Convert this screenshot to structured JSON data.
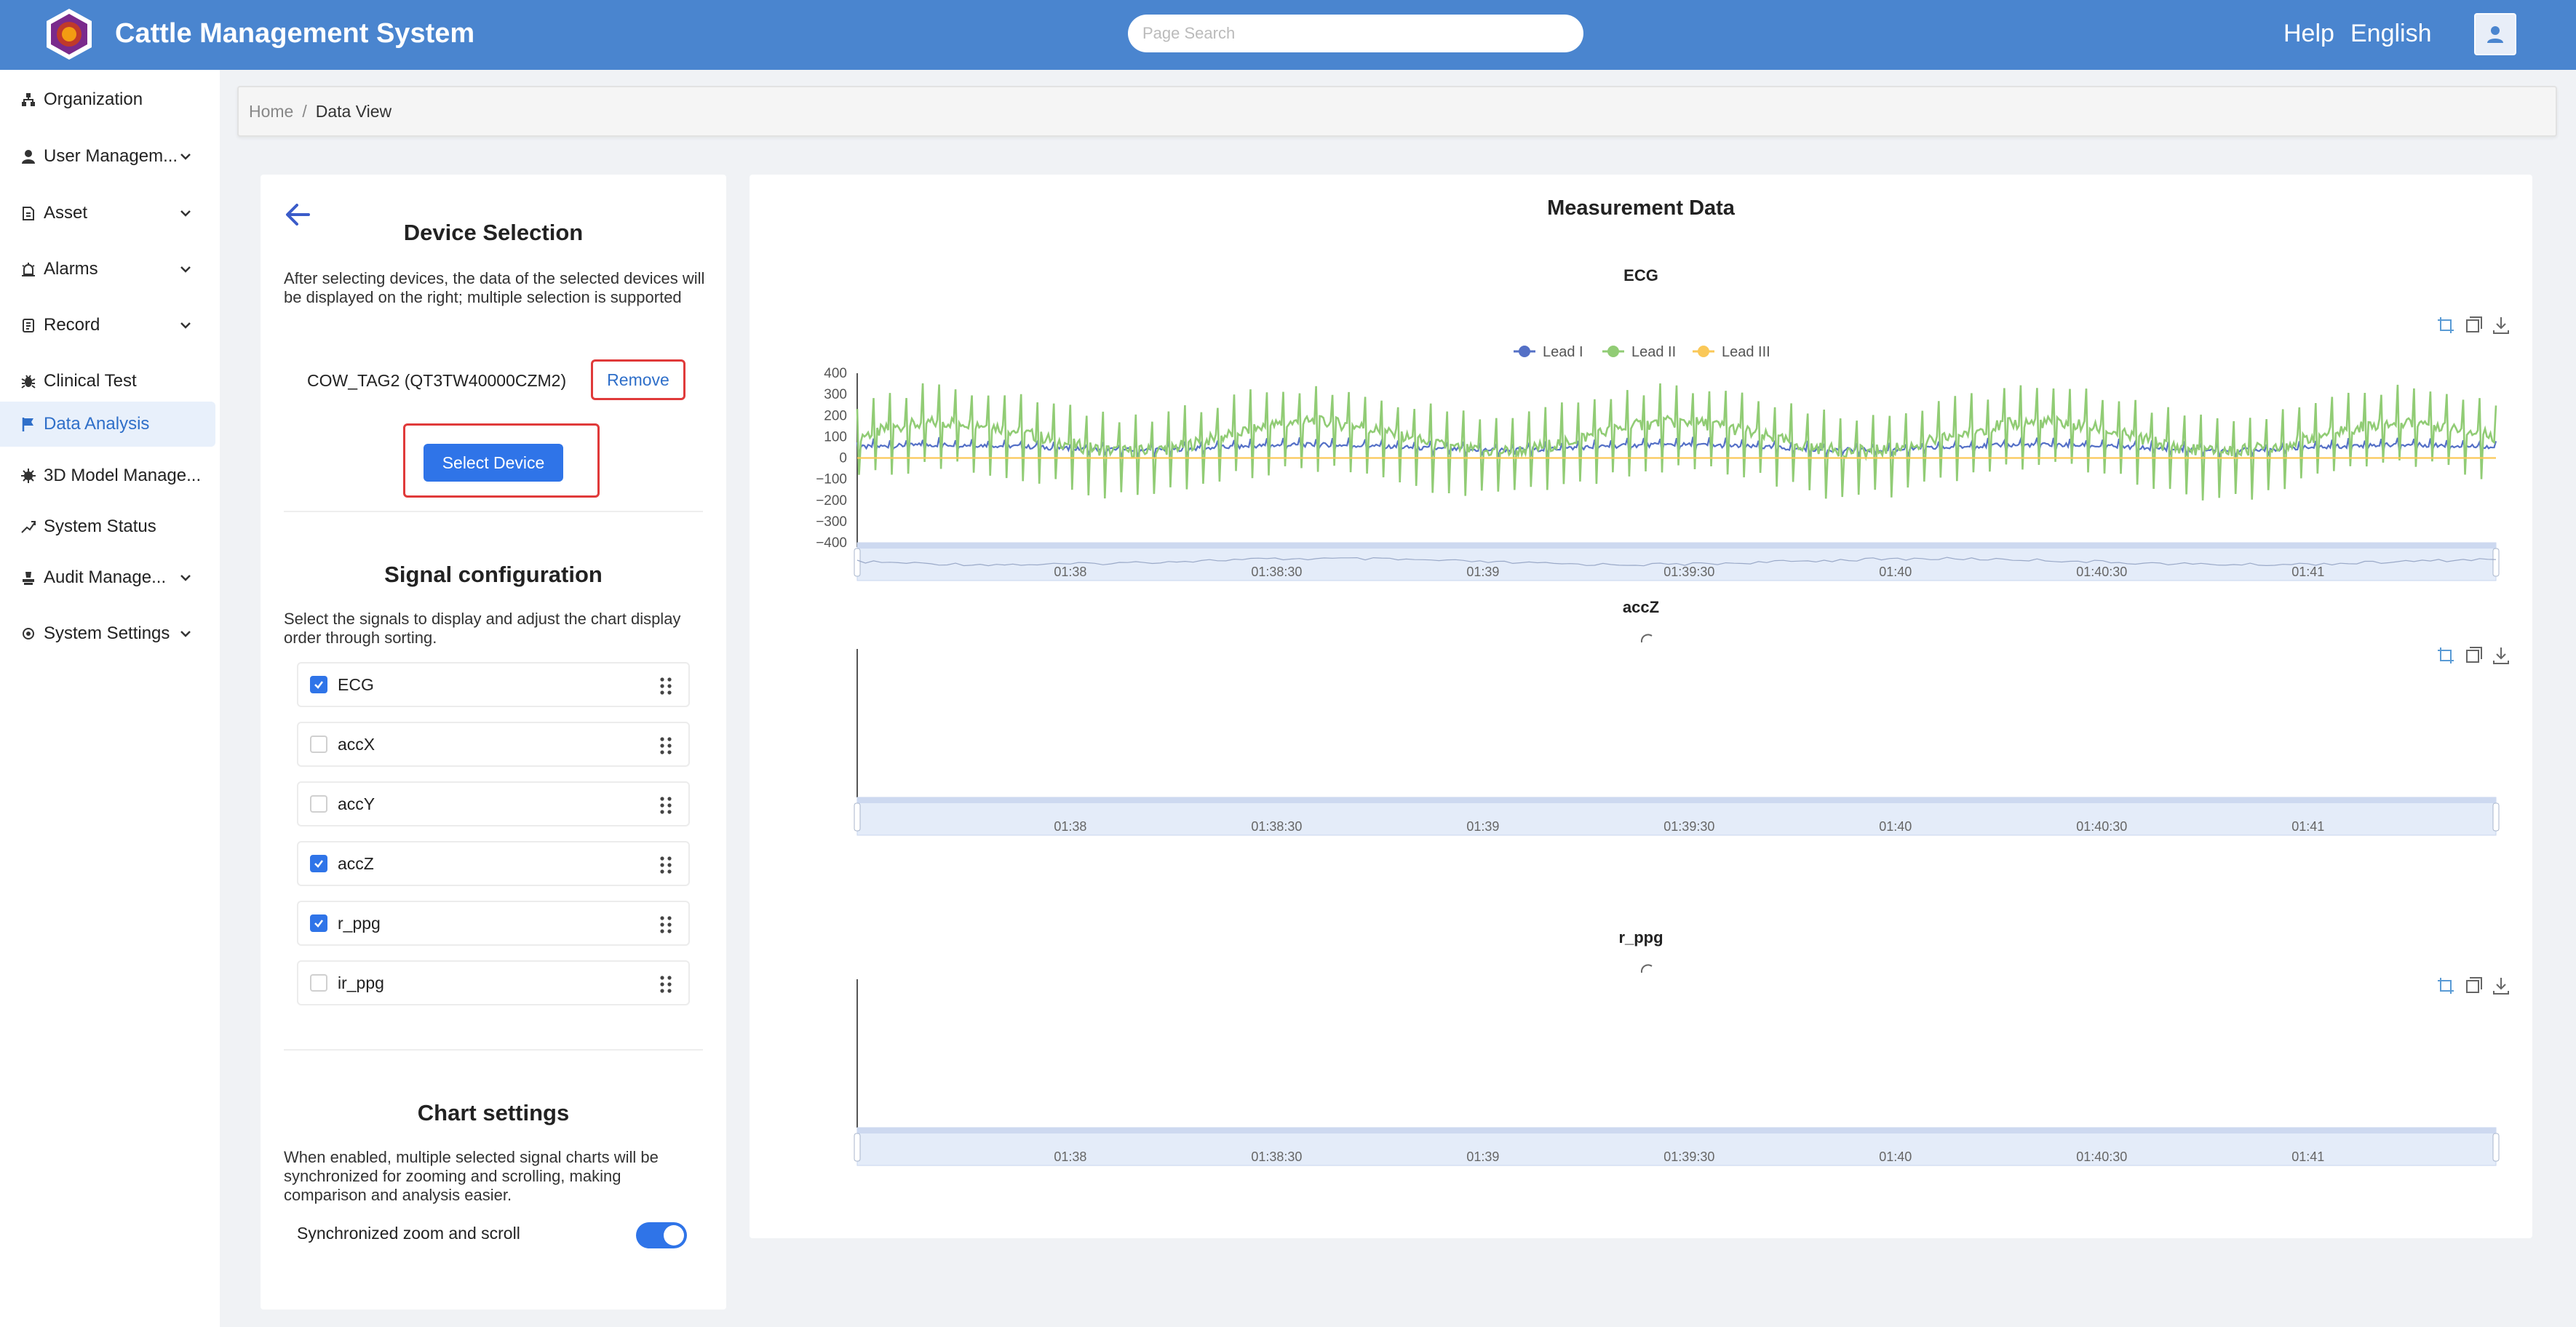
{
  "app": {
    "title": "Cattle Management System"
  },
  "header": {
    "search_placeholder": "Page Search",
    "help": "Help",
    "language": "English"
  },
  "sidebar": {
    "items": [
      {
        "label": "Organization",
        "icon": "org-icon",
        "expandable": false
      },
      {
        "label": "User Managem...",
        "icon": "user-icon",
        "expandable": true
      },
      {
        "label": "Asset",
        "icon": "asset-icon",
        "expandable": true
      },
      {
        "label": "Alarms",
        "icon": "alarm-icon",
        "expandable": true
      },
      {
        "label": "Record",
        "icon": "record-icon",
        "expandable": true
      },
      {
        "label": "Clinical Test",
        "icon": "bug-icon",
        "expandable": false
      },
      {
        "label": "Data Analysis",
        "icon": "flag-icon",
        "expandable": false,
        "active": true
      },
      {
        "label": "3D Model Manage...",
        "icon": "model-icon",
        "expandable": false
      },
      {
        "label": "System Status",
        "icon": "trend-icon",
        "expandable": false
      },
      {
        "label": "Audit Manage...",
        "icon": "audit-icon",
        "expandable": true
      },
      {
        "label": "System Settings",
        "icon": "settings-icon",
        "expandable": true
      }
    ]
  },
  "breadcrumb": {
    "home": "Home",
    "separator": "/",
    "current": "Data View"
  },
  "device_selection": {
    "title": "Device Selection",
    "description": "After selecting devices, the data of the selected devices will be displayed on the right; multiple selection is supported",
    "device": "COW_TAG2 (QT3TW40000CZM2)",
    "remove_label": "Remove",
    "select_label": "Select Device"
  },
  "signal_config": {
    "title": "Signal configuration",
    "description": "Select the signals to display and adjust the chart display order through sorting.",
    "signals": [
      {
        "name": "ECG",
        "checked": true
      },
      {
        "name": "accX",
        "checked": false
      },
      {
        "name": "accY",
        "checked": false
      },
      {
        "name": "accZ",
        "checked": true
      },
      {
        "name": "r_ppg",
        "checked": true
      },
      {
        "name": "ir_ppg",
        "checked": false
      }
    ]
  },
  "chart_settings": {
    "title": "Chart settings",
    "description": "When enabled, multiple selected signal charts will be synchronized for zooming and scrolling, making comparison and analysis easier.",
    "toggle_label": "Synchronized zoom and scroll",
    "toggle_on": true
  },
  "measurement": {
    "title": "Measurement Data"
  },
  "chart_data": [
    {
      "type": "line",
      "title": "ECG",
      "y_ticks": [
        "400",
        "300",
        "200",
        "100",
        "0",
        "−100",
        "−200",
        "−300",
        "−400"
      ],
      "ylim": [
        -400,
        400
      ],
      "x_ticks": [
        "01:38",
        "01:38:30",
        "01:39",
        "01:39:30",
        "01:40",
        "01:40:30",
        "01:41"
      ],
      "legend_position": "top-center",
      "series": [
        {
          "name": "Lead I",
          "color": "#5470c6",
          "baseline": 50,
          "amplitude": 40
        },
        {
          "name": "Lead II",
          "color": "#91cc75",
          "baseline": 100,
          "amplitude": 230
        },
        {
          "name": "Lead III",
          "color": "#fac858",
          "baseline": 0,
          "amplitude": 0
        }
      ]
    },
    {
      "type": "line",
      "title": "accZ",
      "x_ticks": [
        "01:38",
        "01:38:30",
        "01:39",
        "01:39:30",
        "01:40",
        "01:40:30",
        "01:41"
      ],
      "series": [],
      "loading": true
    },
    {
      "type": "line",
      "title": "r_ppg",
      "x_ticks": [
        "01:38",
        "01:38:30",
        "01:39",
        "01:39:30",
        "01:40",
        "01:40:30",
        "01:41"
      ],
      "series": [],
      "loading": true
    }
  ],
  "colors": {
    "header": "#4a85cf",
    "accent": "#2f74e8",
    "highlight": "#e03a3a"
  }
}
